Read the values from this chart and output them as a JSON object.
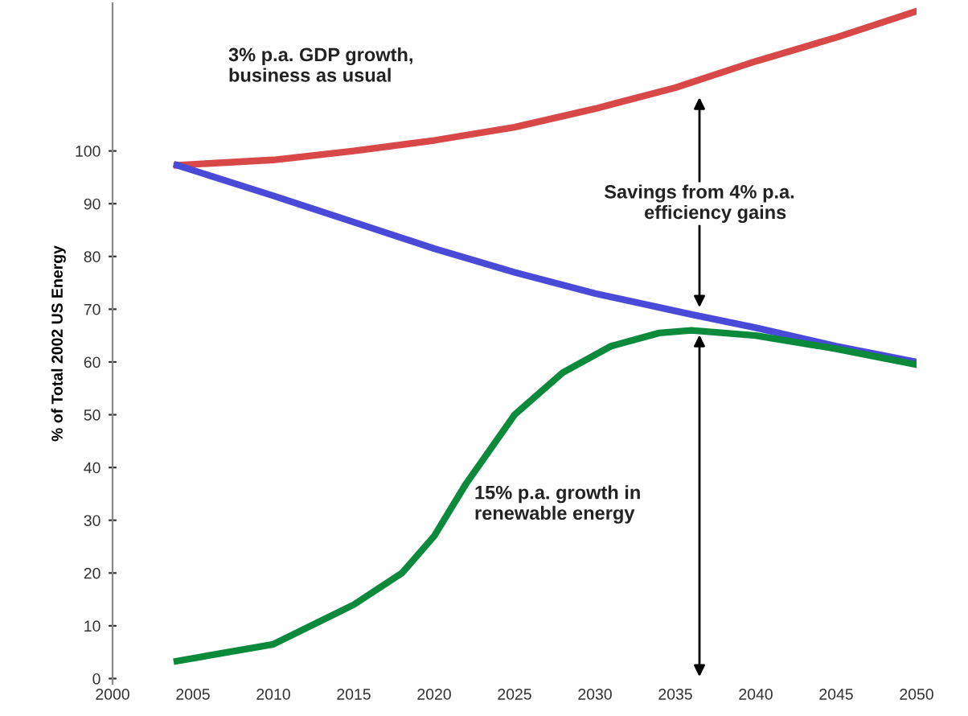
{
  "chart_data": {
    "type": "line",
    "ylabel": "% of Total 2002 US Energy",
    "series": [
      {
        "color": "#d94848",
        "x": [
          2004,
          2010,
          2015,
          2020,
          2025,
          2030,
          2035,
          2040,
          2045,
          2050
        ],
        "values": [
          97.3,
          98.3,
          100,
          102,
          104.5,
          108,
          112,
          117,
          121.5,
          126.5
        ]
      },
      {
        "color": "#4a4ad8",
        "x": [
          2004,
          2010,
          2015,
          2020,
          2025,
          2030,
          2036,
          2040,
          2045,
          2050
        ],
        "values": [
          97.3,
          91.5,
          86.5,
          81.5,
          77,
          73,
          69,
          66.5,
          63,
          60
        ]
      },
      {
        "color": "#0b8a3c",
        "x": [
          2004,
          2010,
          2015,
          2018,
          2020,
          2022,
          2025,
          2028,
          2031,
          2034,
          2036,
          2040,
          2045,
          2050
        ],
        "values": [
          3.3,
          6.5,
          14,
          20,
          27,
          37,
          50,
          58,
          63,
          65.5,
          66,
          65,
          62.5,
          59.5
        ]
      }
    ],
    "xlim": [
      2000,
      2050
    ],
    "xticks": [
      2000,
      2005,
      2010,
      2015,
      2020,
      2025,
      2030,
      2035,
      2040,
      2045,
      2050
    ],
    "ylim": [
      -1,
      128
    ],
    "yticks": [
      0,
      10,
      20,
      30,
      40,
      50,
      60,
      70,
      80,
      90,
      100
    ],
    "grid": false,
    "marker": "none",
    "line_style": "solid",
    "legend": false,
    "annotations": [
      "3% p.a. GDP growth,\nbusiness as usual",
      "Savings from 4% p.a.\n      efficiency gains",
      "15% p.a. growth in\nrenewable energy"
    ]
  }
}
